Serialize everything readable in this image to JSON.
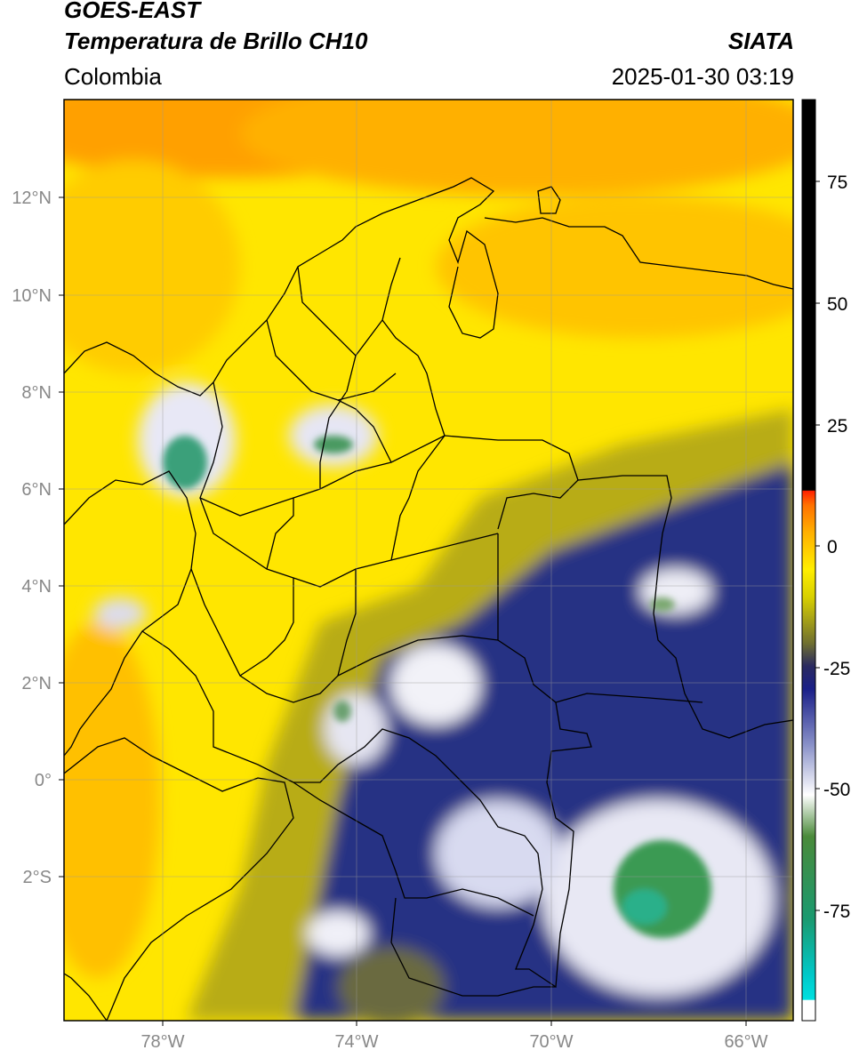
{
  "header": {
    "title_line1": "GOES-EAST",
    "title_line2": "Temperatura de Brillo CH10",
    "region": "Colombia",
    "brand": "SIATA",
    "timestamp": "2025-01-30 03:19"
  },
  "map": {
    "lat_labels": [
      "12°N",
      "10°N",
      "8°N",
      "6°N",
      "4°N",
      "2°N",
      "0°",
      "2°S"
    ],
    "lon_labels": [
      "78°W",
      "74°W",
      "70°W",
      "66°W"
    ],
    "colors": {
      "warm": "#ffe600",
      "orange": "#ffb400",
      "olive": "#b8b020",
      "navy": "#1a237e",
      "white": "#f2f2f2",
      "green": "#3a9a5a"
    }
  },
  "colorbar": {
    "labels": [
      "75",
      "50",
      "25",
      "0",
      "-25",
      "-50",
      "-75"
    ],
    "unit_note": ""
  }
}
